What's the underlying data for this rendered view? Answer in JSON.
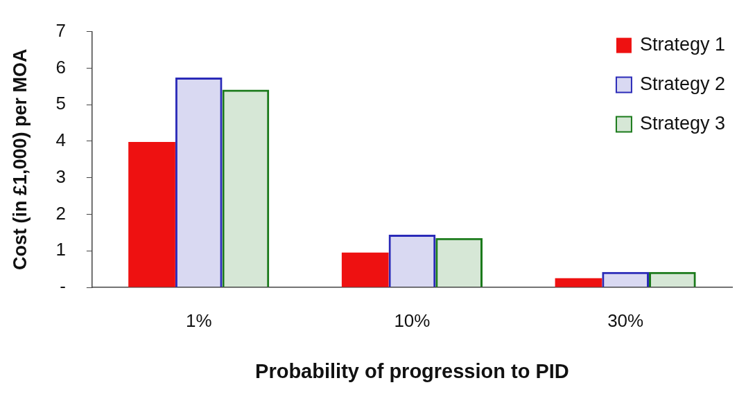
{
  "chart_data": {
    "type": "bar",
    "xlabel": "Probability of progression to PID",
    "ylabel": "Cost (in £1,000) per MOA",
    "categories": [
      "1%",
      "10%",
      "30%"
    ],
    "series": [
      {
        "name": "Strategy 1",
        "color": "#ee1111",
        "values": [
          3.98,
          0.95,
          0.25
        ]
      },
      {
        "name": "Strategy 2",
        "color": "#2a2ab8",
        "values": [
          5.74,
          1.44,
          0.42
        ]
      },
      {
        "name": "Strategy 3",
        "color": "#1a7a1a",
        "values": [
          5.41,
          1.35,
          0.42
        ]
      }
    ],
    "ylim": [
      0,
      7
    ],
    "yticks": [
      {
        "value": 0,
        "label": "-"
      },
      1,
      2,
      3,
      4,
      5,
      6,
      7
    ],
    "grid": false,
    "legend": "top right"
  }
}
